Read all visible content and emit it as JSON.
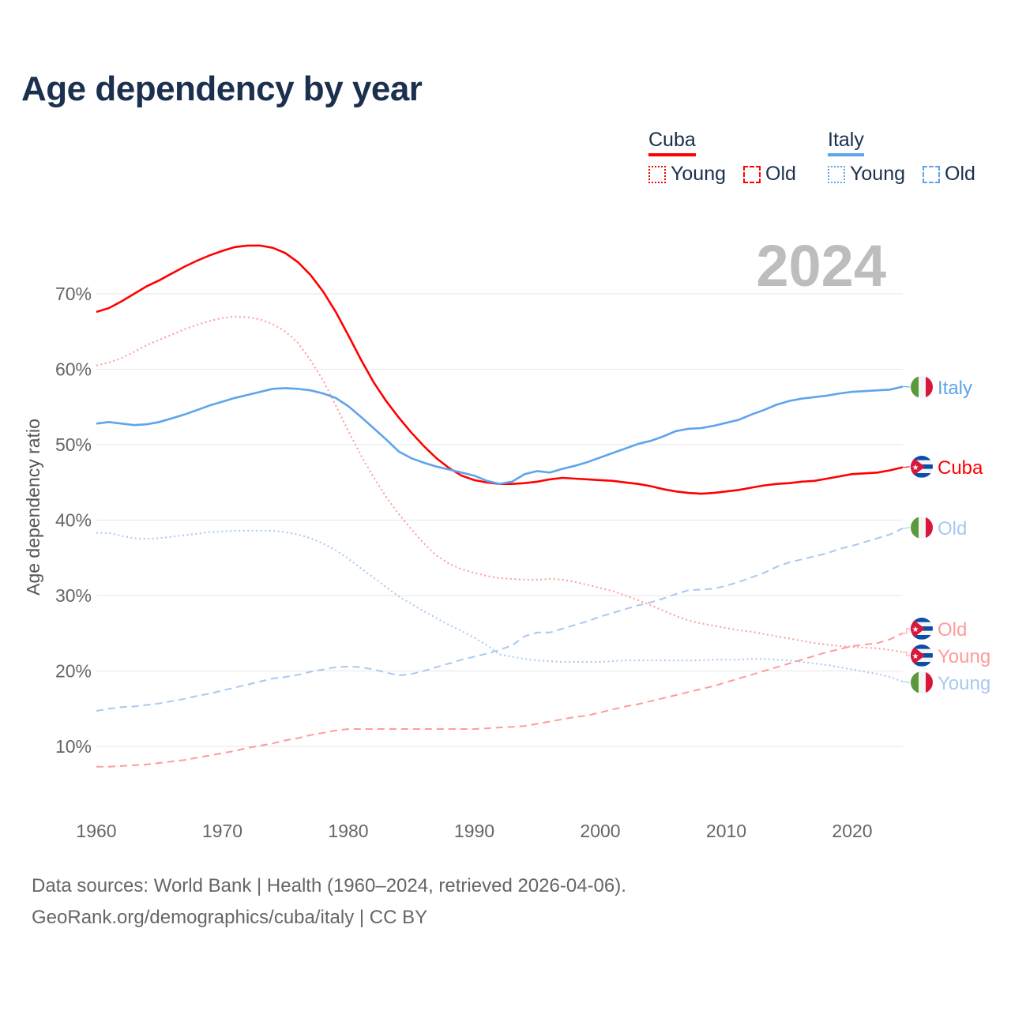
{
  "title": "Age dependency by year",
  "legend": {
    "groups": [
      {
        "country": "Cuba",
        "color": "#ff0000",
        "light": "#ff9b9b",
        "items": [
          "Young",
          "Old"
        ]
      },
      {
        "country": "Italy",
        "color": "#5ea4ec",
        "light": "#a9c9ef",
        "items": [
          "Young",
          "Old"
        ]
      }
    ]
  },
  "year_label": "2024",
  "footer": {
    "line1": "Data sources: World Bank | Health (1960–2024, retrieved 2026-04-06).",
    "line2": "GeoRank.org/demographics/cuba/italy | CC BY"
  },
  "chart_data": {
    "type": "line",
    "title": "Age dependency by year",
    "xlabel": "",
    "ylabel": "Age dependency ratio",
    "xlim": [
      1960,
      2024
    ],
    "ylim": [
      0,
      80
    ],
    "x_ticks": [
      "1960",
      "1970",
      "1980",
      "1990",
      "2000",
      "2010",
      "2020"
    ],
    "y_ticks": [
      "10%",
      "20%",
      "30%",
      "40%",
      "50%",
      "60%",
      "70%"
    ],
    "x_start": 1960,
    "series": [
      {
        "name": "Cuba",
        "end_label": "Cuba",
        "color": "#ff0000",
        "style": "solid",
        "flag": "cuba",
        "values": [
          67.6,
          68.1,
          69.0,
          70.0,
          71.0,
          71.8,
          72.7,
          73.6,
          74.4,
          75.1,
          75.7,
          76.2,
          76.4,
          76.4,
          76.1,
          75.4,
          74.2,
          72.5,
          70.3,
          67.6,
          64.5,
          61.3,
          58.3,
          55.8,
          53.6,
          51.6,
          49.8,
          48.2,
          46.9,
          45.9,
          45.3,
          45.0,
          44.8,
          44.8,
          44.9,
          45.1,
          45.4,
          45.6,
          45.5,
          45.4,
          45.3,
          45.2,
          45.0,
          44.8,
          44.5,
          44.1,
          43.8,
          43.6,
          43.5,
          43.6,
          43.8,
          44.0,
          44.3,
          44.6,
          44.8,
          44.9,
          45.1,
          45.2,
          45.5,
          45.8,
          46.1,
          46.2,
          46.3,
          46.6,
          47.0
        ]
      },
      {
        "name": "Cuba Young",
        "end_label": "Young",
        "color": "#ff9b9b",
        "style": "dotted",
        "flag": "cuba",
        "values": [
          60.5,
          60.9,
          61.5,
          62.3,
          63.2,
          63.9,
          64.6,
          65.3,
          65.9,
          66.4,
          66.8,
          67.0,
          66.9,
          66.6,
          66.0,
          65.0,
          63.5,
          61.2,
          58.5,
          55.2,
          51.8,
          48.6,
          45.7,
          43.1,
          40.8,
          38.8,
          36.9,
          35.3,
          34.2,
          33.5,
          33.0,
          32.6,
          32.3,
          32.2,
          32.1,
          32.1,
          32.2,
          32.1,
          31.8,
          31.4,
          31.0,
          30.6,
          30.0,
          29.4,
          28.7,
          28.0,
          27.3,
          26.7,
          26.3,
          26.0,
          25.7,
          25.4,
          25.2,
          24.9,
          24.6,
          24.3,
          24.0,
          23.7,
          23.5,
          23.3,
          23.2,
          23.1,
          23.0,
          22.8,
          22.5
        ]
      },
      {
        "name": "Cuba Old",
        "end_label": "Old",
        "color": "#ff9b9b",
        "style": "dashed",
        "flag": "cuba",
        "values": [
          7.3,
          7.3,
          7.4,
          7.5,
          7.6,
          7.8,
          8.0,
          8.2,
          8.5,
          8.8,
          9.1,
          9.4,
          9.8,
          10.1,
          10.4,
          10.8,
          11.1,
          11.5,
          11.8,
          12.1,
          12.3,
          12.3,
          12.3,
          12.3,
          12.3,
          12.3,
          12.3,
          12.3,
          12.3,
          12.3,
          12.3,
          12.4,
          12.5,
          12.6,
          12.7,
          13.0,
          13.3,
          13.6,
          13.9,
          14.1,
          14.5,
          14.9,
          15.3,
          15.6,
          16.0,
          16.4,
          16.8,
          17.2,
          17.6,
          18.0,
          18.5,
          19.0,
          19.5,
          20.0,
          20.5,
          21.0,
          21.5,
          22.0,
          22.5,
          22.9,
          23.3,
          23.5,
          23.7,
          24.2,
          25.0
        ]
      },
      {
        "name": "Italy",
        "end_label": "Italy",
        "color": "#5ea4ec",
        "style": "solid",
        "flag": "italy",
        "values": [
          52.8,
          53.0,
          52.8,
          52.6,
          52.7,
          53.0,
          53.5,
          54.0,
          54.6,
          55.2,
          55.7,
          56.2,
          56.6,
          57.0,
          57.4,
          57.5,
          57.4,
          57.2,
          56.8,
          56.2,
          55.1,
          53.7,
          52.2,
          50.7,
          49.1,
          48.2,
          47.6,
          47.1,
          46.7,
          46.3,
          45.9,
          45.2,
          44.8,
          45.1,
          46.1,
          46.5,
          46.3,
          46.8,
          47.2,
          47.7,
          48.3,
          48.9,
          49.5,
          50.1,
          50.5,
          51.1,
          51.8,
          52.1,
          52.2,
          52.5,
          52.9,
          53.3,
          54.0,
          54.6,
          55.3,
          55.8,
          56.1,
          56.3,
          56.5,
          56.8,
          57.0,
          57.1,
          57.2,
          57.3,
          57.7
        ]
      },
      {
        "name": "Italy Young",
        "end_label": "Young",
        "color": "#a9c9ef",
        "style": "dotted",
        "flag": "italy",
        "values": [
          38.3,
          38.3,
          37.9,
          37.6,
          37.5,
          37.6,
          37.8,
          38.0,
          38.2,
          38.4,
          38.5,
          38.6,
          38.6,
          38.6,
          38.6,
          38.4,
          38.1,
          37.6,
          36.9,
          36.0,
          34.9,
          33.6,
          32.4,
          31.1,
          29.9,
          28.9,
          27.9,
          27.0,
          26.1,
          25.3,
          24.4,
          23.4,
          22.2,
          21.9,
          21.6,
          21.4,
          21.3,
          21.2,
          21.2,
          21.2,
          21.2,
          21.3,
          21.4,
          21.4,
          21.4,
          21.4,
          21.4,
          21.4,
          21.4,
          21.5,
          21.5,
          21.5,
          21.6,
          21.6,
          21.5,
          21.4,
          21.2,
          21.0,
          20.8,
          20.5,
          20.2,
          19.9,
          19.6,
          19.2,
          18.6
        ]
      },
      {
        "name": "Italy Old",
        "end_label": "Old",
        "color": "#a9c9ef",
        "style": "dashed",
        "flag": "italy",
        "values": [
          14.7,
          15.0,
          15.2,
          15.3,
          15.5,
          15.7,
          16.0,
          16.3,
          16.7,
          17.0,
          17.4,
          17.8,
          18.2,
          18.6,
          19.0,
          19.2,
          19.5,
          19.9,
          20.2,
          20.5,
          20.6,
          20.5,
          20.2,
          19.8,
          19.4,
          19.6,
          20.0,
          20.5,
          21.0,
          21.5,
          21.9,
          22.3,
          22.8,
          23.4,
          24.6,
          25.1,
          25.1,
          25.6,
          26.1,
          26.6,
          27.2,
          27.7,
          28.2,
          28.7,
          29.1,
          29.6,
          30.2,
          30.7,
          30.8,
          30.9,
          31.3,
          31.8,
          32.4,
          33.0,
          33.8,
          34.4,
          34.8,
          35.2,
          35.6,
          36.2,
          36.6,
          37.1,
          37.6,
          38.1,
          38.9
        ]
      }
    ]
  }
}
